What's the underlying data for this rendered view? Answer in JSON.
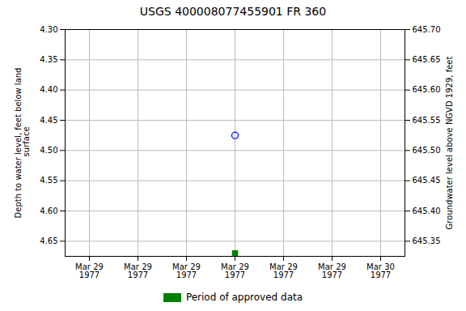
{
  "chart_data": {
    "type": "scatter",
    "title": "USGS 400008077455901 FR   360",
    "y_label": "Depth to water level, feet below land\n surface",
    "y2_label": "Groundwater level above NGVD 1929, feet",
    "categories": [
      "Mar 29\n1977",
      "Mar 29\n1977",
      "Mar 29\n1977",
      "Mar 29\n1977",
      "Mar 29\n1977",
      "Mar 29\n1977",
      "Mar 30\n1977"
    ],
    "series": [
      {
        "color": "blue",
        "marker": "circle",
        "values": [
          null,
          null,
          null,
          4.475,
          null,
          null,
          null
        ]
      },
      {
        "name": "Period of approved data",
        "color": "#008000",
        "marker": "square",
        "values": [
          null,
          null,
          null,
          4.67,
          null,
          null,
          null
        ]
      }
    ],
    "ylim": [
      4.675,
      4.3
    ],
    "yticks": [
      {
        "value": 4.3,
        "label": "4.30"
      },
      4.35,
      {
        "value": 4.4,
        "label": "4.40"
      },
      4.45,
      {
        "value": 4.5,
        "label": "4.50"
      },
      4.55,
      {
        "value": 4.6,
        "label": "4.60"
      },
      4.65
    ],
    "y2lim": [
      645.325,
      645.7
    ],
    "y2ticks": [
      {
        "value": 645.7,
        "label": "645.70"
      },
      645.65,
      {
        "value": 645.6,
        "label": "645.60"
      },
      645.55,
      {
        "value": 645.5,
        "label": "645.50"
      },
      645.45,
      {
        "value": 645.4,
        "label": "645.40"
      },
      645.35
    ],
    "grid": true,
    "legend": "bottom"
  }
}
